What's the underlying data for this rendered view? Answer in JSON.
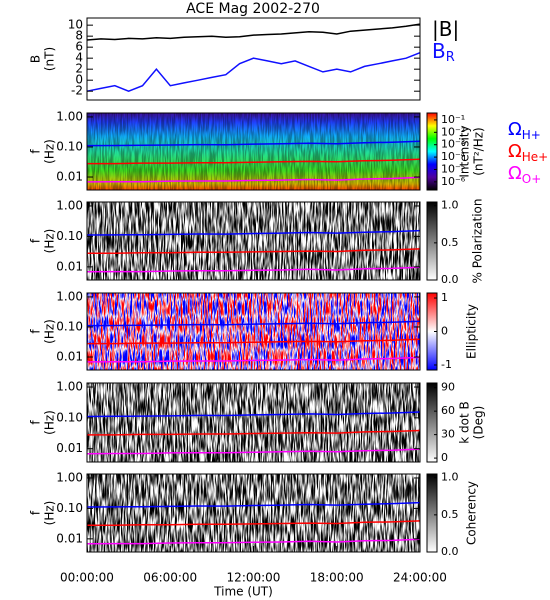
{
  "title": "ACE Mag 2002-270",
  "chart_data": [
    {
      "type": "line",
      "ylabel": [
        "B",
        "(nT)"
      ],
      "xlim": [
        0,
        24
      ],
      "ylim": [
        -3.6,
        11.3
      ],
      "yticks": [
        -2,
        0,
        2,
        4,
        6,
        8,
        10
      ],
      "x": [
        0,
        1,
        2,
        3,
        4,
        5,
        6,
        7,
        8,
        9,
        10,
        11,
        12,
        13,
        14,
        15,
        16,
        17,
        18,
        19,
        20,
        21,
        22,
        23,
        24
      ],
      "series": [
        {
          "name": "|B|",
          "color": "#000000",
          "values": [
            7.3,
            7.5,
            7.4,
            7.6,
            7.5,
            7.7,
            7.6,
            7.8,
            7.9,
            8.0,
            7.8,
            7.9,
            8.2,
            8.3,
            8.4,
            8.6,
            8.8,
            8.7,
            8.4,
            8.9,
            9.1,
            9.3,
            9.5,
            9.8,
            10.2
          ]
        },
        {
          "name": "B",
          "name_sub": "R",
          "color": "#1010ff",
          "values": [
            -2,
            -1.5,
            -1,
            -2,
            -1,
            2,
            -1,
            -0.5,
            0,
            0.5,
            1,
            3,
            4,
            3.5,
            3,
            3.5,
            2.5,
            1.5,
            2,
            1.5,
            2.5,
            3,
            3.5,
            4,
            5
          ]
        }
      ]
    },
    {
      "type": "spectrogram",
      "ylabel": [
        "f",
        "(Hz)"
      ],
      "log": true,
      "xlim": [
        0,
        24
      ],
      "ylim": [
        0.0037,
        1.35
      ],
      "yticks": [
        {
          "value": 1,
          "label": "1.00"
        },
        {
          "value": 0.1,
          "label": "0.10"
        },
        {
          "value": 0.01,
          "label": "0.01"
        }
      ],
      "colorbar_label": [
        "Intensity",
        "(nT²/Hz)"
      ],
      "clog": true,
      "clim": [
        2.2e-07,
        0.363
      ],
      "colors": [
        "#ff0000",
        "#ffff00",
        "#00ff00",
        "#00ffff",
        "#0000ff",
        "#5000a0",
        "#000000"
      ],
      "cticks": [
        {
          "value": 0.1,
          "label": "10⁻¹"
        },
        {
          "value": 0.01,
          "label": "10⁻²"
        },
        {
          "value": 0.001,
          "label": "10⁻³"
        },
        {
          "value": 0.0001,
          "label": "10⁻⁴"
        },
        {
          "value": 1e-05,
          "label": "10⁻⁵"
        },
        {
          "value": 1e-06,
          "label": "10⁻⁶"
        }
      ],
      "x": [
        0,
        2,
        4,
        6,
        8,
        10,
        12,
        14,
        16,
        18,
        20,
        22,
        24
      ],
      "series": [
        {
          "name": "Ω",
          "name_sub": "H+",
          "color": "#0000ff",
          "values": [
            0.111,
            0.112,
            0.114,
            0.116,
            0.12,
            0.119,
            0.125,
            0.128,
            0.134,
            0.128,
            0.138,
            0.144,
            0.155
          ]
        },
        {
          "name": "Ω",
          "name_sub": "He+",
          "color": "#ff0000",
          "values": [
            0.028,
            0.028,
            0.029,
            0.029,
            0.03,
            0.03,
            0.031,
            0.032,
            0.033,
            0.032,
            0.035,
            0.036,
            0.039
          ]
        },
        {
          "name": "Ω",
          "name_sub": "O+",
          "color": "#ff00ff",
          "values": [
            0.0069,
            0.007,
            0.007,
            0.0073,
            0.0074,
            0.0074,
            0.0077,
            0.0079,
            0.0083,
            0.0079,
            0.0086,
            0.0089,
            0.0097
          ]
        }
      ]
    },
    {
      "type": "spectrogram",
      "ylabel": [
        "f",
        "(Hz)"
      ],
      "log": true,
      "xlim": [
        0,
        24
      ],
      "ylim": [
        0.0037,
        1.35
      ],
      "yticks": [
        {
          "value": 1,
          "label": "1.00"
        },
        {
          "value": 0.1,
          "label": "0.10"
        },
        {
          "value": 0.01,
          "label": "0.01"
        }
      ],
      "colorbar_label": [
        "% Polarization"
      ],
      "clim": [
        0,
        1.05
      ],
      "colors": [
        "#000000",
        "#ffffff"
      ],
      "cticks": [
        {
          "value": 0,
          "label": "0.0"
        },
        {
          "value": 0.5,
          "label": "0.5"
        },
        {
          "value": 1,
          "label": "1.0"
        }
      ],
      "x": [
        0,
        2,
        4,
        6,
        8,
        10,
        12,
        14,
        16,
        18,
        20,
        22,
        24
      ],
      "series": [
        {
          "color": "#0000ff",
          "values": [
            0.111,
            0.112,
            0.114,
            0.116,
            0.12,
            0.119,
            0.125,
            0.128,
            0.134,
            0.128,
            0.138,
            0.144,
            0.155
          ]
        },
        {
          "color": "#ff0000",
          "values": [
            0.028,
            0.028,
            0.029,
            0.029,
            0.03,
            0.03,
            0.031,
            0.032,
            0.033,
            0.032,
            0.035,
            0.036,
            0.039
          ]
        },
        {
          "color": "#ff00ff",
          "values": [
            0.0069,
            0.007,
            0.007,
            0.0073,
            0.0074,
            0.0074,
            0.0077,
            0.0079,
            0.0083,
            0.0079,
            0.0086,
            0.0089,
            0.0097
          ]
        }
      ]
    },
    {
      "type": "spectrogram",
      "ylabel": [
        "f",
        "(Hz)"
      ],
      "log": true,
      "xlim": [
        0,
        24
      ],
      "ylim": [
        0.0037,
        1.35
      ],
      "yticks": [
        {
          "value": 1,
          "label": "1.00"
        },
        {
          "value": 0.1,
          "label": "0.10"
        },
        {
          "value": 0.01,
          "label": "0.01"
        }
      ],
      "colorbar_label": [
        "Ellipticity"
      ],
      "clim": [
        -1.15,
        1.15
      ],
      "colors": [
        "#ff0000",
        "#ffffff",
        "#0000ff"
      ],
      "cticks": [
        1,
        0,
        -1
      ],
      "x": [
        0,
        2,
        4,
        6,
        8,
        10,
        12,
        14,
        16,
        18,
        20,
        22,
        24
      ],
      "series": [
        {
          "color": "#0000ff",
          "values": [
            0.111,
            0.112,
            0.114,
            0.116,
            0.12,
            0.119,
            0.125,
            0.128,
            0.134,
            0.128,
            0.138,
            0.144,
            0.155
          ]
        },
        {
          "color": "#ff0000",
          "values": [
            0.028,
            0.028,
            0.029,
            0.029,
            0.03,
            0.03,
            0.031,
            0.032,
            0.033,
            0.032,
            0.035,
            0.036,
            0.039
          ]
        },
        {
          "color": "#ff00ff",
          "values": [
            0.0069,
            0.007,
            0.007,
            0.0073,
            0.0074,
            0.0074,
            0.0077,
            0.0079,
            0.0083,
            0.0079,
            0.0086,
            0.0089,
            0.0097
          ]
        }
      ]
    },
    {
      "type": "spectrogram",
      "ylabel": [
        "f",
        "(Hz)"
      ],
      "log": true,
      "xlim": [
        0,
        24
      ],
      "ylim": [
        0.0037,
        1.35
      ],
      "yticks": [
        {
          "value": 1,
          "label": "1.00"
        },
        {
          "value": 0.1,
          "label": "0.10"
        },
        {
          "value": 0.01,
          "label": "0.01"
        }
      ],
      "colorbar_label": [
        "k dot B",
        "(Deg)"
      ],
      "clim": [
        -5,
        96
      ],
      "colors": [
        "#000000",
        "#ffffff"
      ],
      "cticks": [
        90,
        60,
        30,
        0
      ],
      "x": [
        0,
        2,
        4,
        6,
        8,
        10,
        12,
        14,
        16,
        18,
        20,
        22,
        24
      ],
      "series": [
        {
          "color": "#0000ff",
          "values": [
            0.111,
            0.112,
            0.114,
            0.116,
            0.12,
            0.119,
            0.125,
            0.128,
            0.134,
            0.128,
            0.138,
            0.144,
            0.155
          ]
        },
        {
          "color": "#ff0000",
          "values": [
            0.028,
            0.028,
            0.029,
            0.029,
            0.03,
            0.03,
            0.031,
            0.032,
            0.033,
            0.032,
            0.035,
            0.036,
            0.039
          ]
        },
        {
          "color": "#ff00ff",
          "values": [
            0.0069,
            0.007,
            0.007,
            0.0073,
            0.0074,
            0.0074,
            0.0077,
            0.0079,
            0.0083,
            0.0079,
            0.0086,
            0.0089,
            0.0097
          ]
        }
      ]
    },
    {
      "type": "spectrogram",
      "ylabel": [
        "f",
        "(Hz)"
      ],
      "log": true,
      "xlim": [
        0,
        24
      ],
      "ylim": [
        0.0037,
        1.35
      ],
      "yticks": [
        {
          "value": 1,
          "label": "1.00"
        },
        {
          "value": 0.1,
          "label": "0.10"
        },
        {
          "value": 0.01,
          "label": "0.01"
        }
      ],
      "colorbar_label": [
        "Coherency"
      ],
      "clim": [
        0,
        1.05
      ],
      "colors": [
        "#000000",
        "#ffffff"
      ],
      "cticks": [
        {
          "value": 0,
          "label": "0.0"
        },
        {
          "value": 0.5,
          "label": "0.5"
        },
        {
          "value": 1,
          "label": "1.0"
        }
      ],
      "xlabel": "Time (UT)",
      "xticks": [
        {
          "value": 0,
          "label": "00:00:00"
        },
        {
          "value": 6,
          "label": "06:00:00"
        },
        {
          "value": 12,
          "label": "12:00:00"
        },
        {
          "value": 18,
          "label": "18:00:00"
        },
        {
          "value": 24,
          "label": "24:00:00"
        }
      ],
      "x": [
        0,
        2,
        4,
        6,
        8,
        10,
        12,
        14,
        16,
        18,
        20,
        22,
        24
      ],
      "series": [
        {
          "color": "#0000ff",
          "values": [
            0.111,
            0.112,
            0.114,
            0.116,
            0.12,
            0.119,
            0.125,
            0.128,
            0.134,
            0.128,
            0.138,
            0.144,
            0.155
          ]
        },
        {
          "color": "#ff0000",
          "values": [
            0.028,
            0.028,
            0.029,
            0.029,
            0.03,
            0.03,
            0.031,
            0.032,
            0.033,
            0.032,
            0.035,
            0.036,
            0.039
          ]
        },
        {
          "color": "#ff00ff",
          "values": [
            0.0069,
            0.007,
            0.007,
            0.0073,
            0.0074,
            0.0074,
            0.0077,
            0.0079,
            0.0083,
            0.0079,
            0.0086,
            0.0089,
            0.0097
          ]
        }
      ]
    }
  ]
}
